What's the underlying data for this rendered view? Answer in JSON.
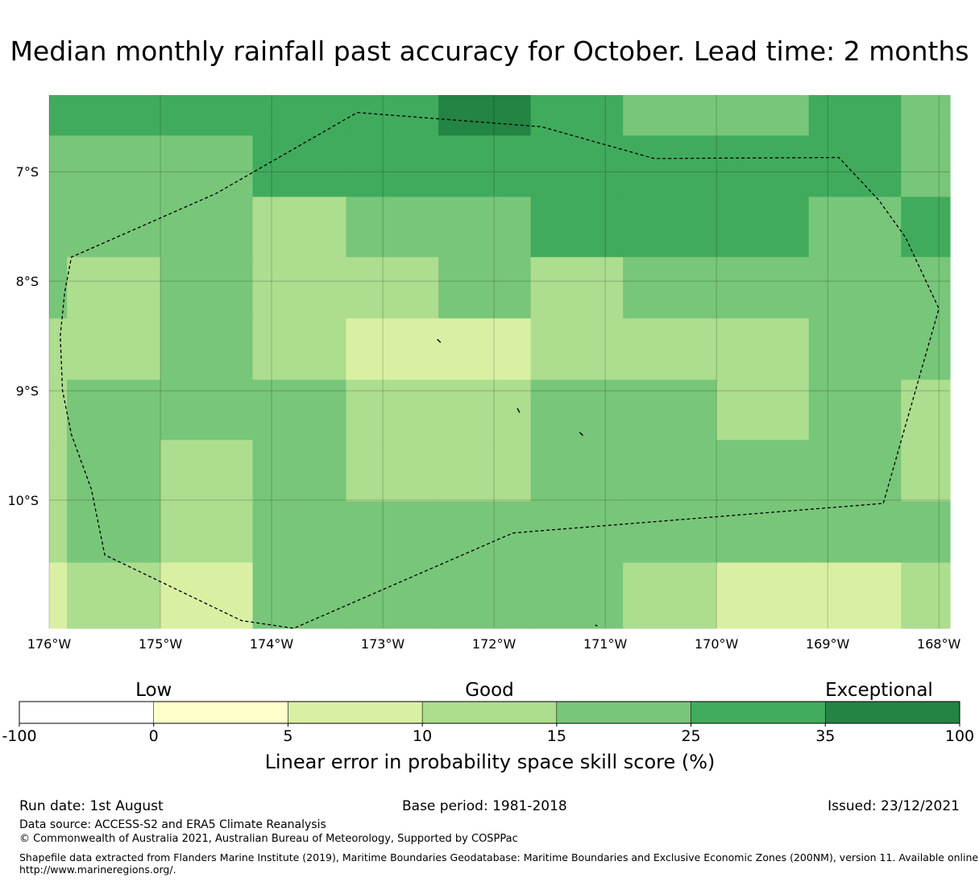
{
  "title": "Median monthly rainfall past accuracy for October. Lead time: 2 months",
  "map": {
    "lon_range": [
      -176.0,
      -167.9
    ],
    "lat_range": [
      -11.17,
      -6.3
    ],
    "lat_ticks": [
      {
        "value": -7,
        "label": "7°S"
      },
      {
        "value": -8,
        "label": "8°S"
      },
      {
        "value": -9,
        "label": "9°S"
      },
      {
        "value": -10,
        "label": "10°S"
      }
    ],
    "lon_ticks": [
      {
        "value": -176,
        "label": "176°W"
      },
      {
        "value": -175,
        "label": "175°W"
      },
      {
        "value": -174,
        "label": "174°W"
      },
      {
        "value": -173,
        "label": "173°W"
      },
      {
        "value": -172,
        "label": "172°W"
      },
      {
        "value": -171,
        "label": "171°W"
      },
      {
        "value": -170,
        "label": "170°W"
      },
      {
        "value": -169,
        "label": "169°W"
      },
      {
        "value": -168,
        "label": "168°W"
      }
    ],
    "grid_lines": true,
    "columns_lon": [
      -176.0,
      -175.84,
      -175.0,
      -174.17,
      -173.33,
      -172.5,
      -171.67,
      -170.84,
      -170.0,
      -169.17,
      -168.34,
      -167.9
    ],
    "rows_lat": [
      -6.3,
      -6.67,
      -7.23,
      -7.78,
      -8.34,
      -8.9,
      -9.45,
      -10.01,
      -10.57,
      -11.17
    ],
    "cell_classes": [
      [
        5,
        5,
        5,
        5,
        5,
        6,
        5,
        4,
        4,
        5,
        4
      ],
      [
        4,
        4,
        4,
        5,
        5,
        5,
        5,
        5,
        5,
        5,
        4
      ],
      [
        4,
        4,
        4,
        3,
        4,
        4,
        5,
        5,
        5,
        4,
        5
      ],
      [
        4,
        3,
        4,
        3,
        3,
        4,
        3,
        4,
        4,
        4,
        4
      ],
      [
        3,
        3,
        4,
        3,
        2,
        2,
        3,
        3,
        3,
        4,
        4
      ],
      [
        3,
        4,
        4,
        4,
        3,
        3,
        4,
        4,
        3,
        4,
        3
      ],
      [
        3,
        4,
        3,
        4,
        3,
        3,
        4,
        4,
        4,
        4,
        3
      ],
      [
        3,
        4,
        3,
        4,
        4,
        4,
        4,
        4,
        4,
        4,
        4
      ],
      [
        2,
        3,
        2,
        4,
        4,
        4,
        4,
        3,
        2,
        2,
        3
      ]
    ],
    "eez_boundary": [
      [
        -173.23,
        -6.46
      ],
      [
        -171.57,
        -6.59
      ],
      [
        -170.56,
        -6.88
      ],
      [
        -168.9,
        -6.87
      ],
      [
        -168.54,
        -7.26
      ],
      [
        -168.3,
        -7.6
      ],
      [
        -168.0,
        -8.25
      ],
      [
        -168.5,
        -10.03
      ],
      [
        -171.83,
        -10.3
      ],
      [
        -173.8,
        -11.17
      ],
      [
        -174.27,
        -11.1
      ],
      [
        -175.5,
        -10.5
      ],
      [
        -175.62,
        -9.9
      ],
      [
        -175.8,
        -9.4
      ],
      [
        -175.88,
        -9.0
      ],
      [
        -175.9,
        -8.5
      ],
      [
        -175.86,
        -8.1
      ],
      [
        -175.8,
        -7.78
      ],
      [
        -174.5,
        -7.2
      ],
      [
        -173.23,
        -6.46
      ]
    ],
    "islands": [
      [
        [
          -172.51,
          -8.53
        ],
        [
          -172.48,
          -8.56
        ]
      ],
      [
        [
          -171.79,
          -9.16
        ],
        [
          -171.77,
          -9.2
        ]
      ],
      [
        [
          -171.23,
          -9.38
        ],
        [
          -171.2,
          -9.41
        ]
      ],
      [
        [
          -171.09,
          -11.14
        ],
        [
          -171.07,
          -11.15
        ]
      ]
    ]
  },
  "colorbar": {
    "bounds": [
      "-100",
      "0",
      "5",
      "10",
      "15",
      "25",
      "35",
      "100"
    ],
    "colors": [
      "#ffffff",
      "#ffffcc",
      "#d9f0a3",
      "#addd8e",
      "#78c679",
      "#41ab5d",
      "#238443"
    ],
    "categories": [
      {
        "label": "Low",
        "at_bin": 1
      },
      {
        "label": "Good",
        "at_bin": 3.5
      },
      {
        "label": "Exceptional",
        "at_bin": 6.4
      }
    ],
    "title": "Linear error in probability space skill score (%)"
  },
  "footer": {
    "run_date": "Run date: 1st August",
    "base_period": "Base period: 1981-2018",
    "issued": "Issued: 23/12/2021",
    "data_source": "Data source: ACCESS-S2 and ERA5 Climate Reanalysis",
    "copyright": "© Commonwealth of Australia 2021, Australian Bureau of Meteorology, Supported by COSPPac",
    "shapefile_line1": "Shapefile data extracted from Flanders Marine Institute (2019), Maritime Boundaries Geodatabase: Maritime Boundaries and Exclusive Economic Zones (200NM), version 11. Available online at",
    "shapefile_line2": "http://www.marineregions.org/."
  }
}
